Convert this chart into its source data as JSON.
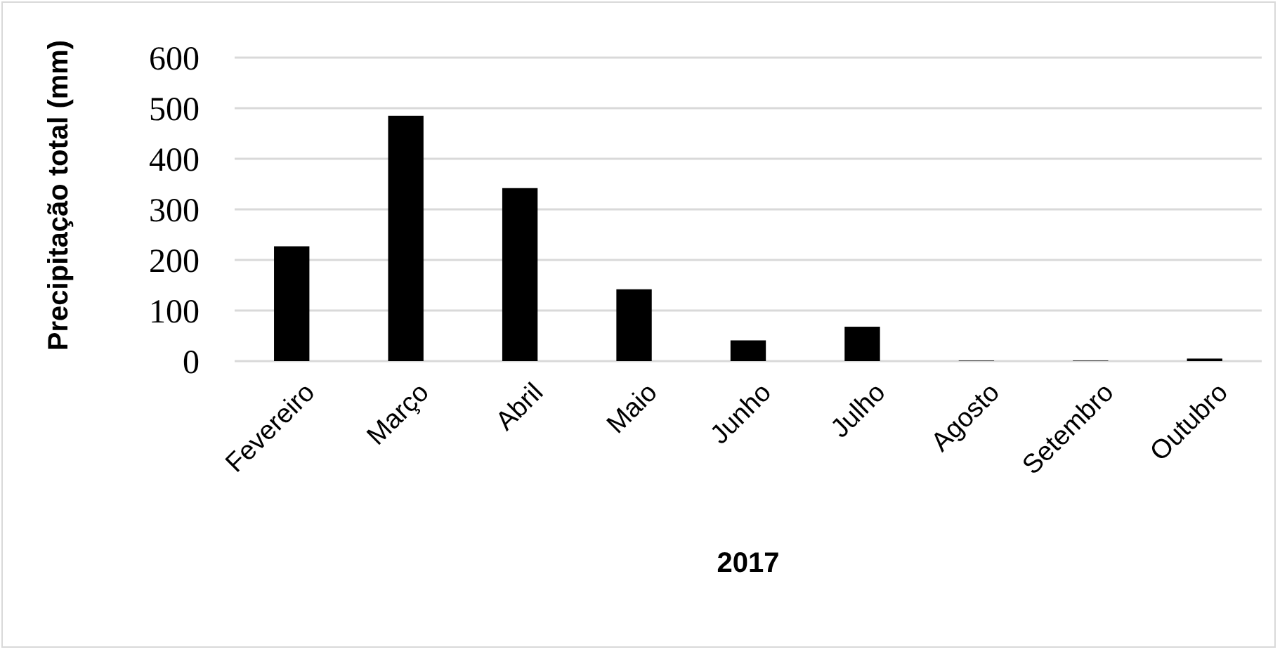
{
  "chart_data": {
    "type": "bar",
    "xlabel": "2017",
    "ylabel": "Precipitação total (mm)",
    "categories": [
      "Fevereiro",
      "Março",
      "Abril",
      "Maio",
      "Junho",
      "Julho",
      "Agosto",
      "Setembro",
      "Outubro"
    ],
    "values": [
      227,
      485,
      342,
      142,
      41,
      68,
      1,
      1,
      5
    ],
    "color": "#000000",
    "ylim": [
      0,
      600
    ],
    "yticks": [
      0,
      100,
      200,
      300,
      400,
      500,
      600
    ],
    "grid": "y"
  }
}
